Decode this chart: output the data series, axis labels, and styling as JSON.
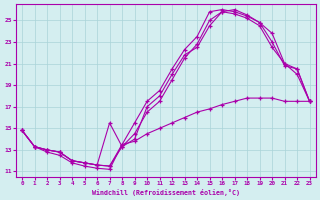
{
  "xlabel": "Windchill (Refroidissement éolien,°C)",
  "bg_color": "#d4eef0",
  "grid_color": "#aad4d8",
  "line_color": "#aa00aa",
  "xlim": [
    -0.5,
    23.5
  ],
  "ylim": [
    10.5,
    26.5
  ],
  "xticks": [
    0,
    1,
    2,
    3,
    4,
    5,
    6,
    7,
    8,
    9,
    10,
    11,
    12,
    13,
    14,
    15,
    16,
    17,
    18,
    19,
    20,
    21,
    22,
    23
  ],
  "yticks": [
    11,
    13,
    15,
    17,
    19,
    21,
    23,
    25
  ],
  "line1_x": [
    0,
    1,
    2,
    3,
    4,
    5,
    6,
    7,
    8,
    9,
    10,
    11,
    12,
    13,
    14,
    15,
    16,
    17,
    18,
    19,
    20,
    21,
    22,
    23
  ],
  "line1_y": [
    14.8,
    13.3,
    13.0,
    12.8,
    12.0,
    11.8,
    11.6,
    11.5,
    13.5,
    15.5,
    17.5,
    18.5,
    20.5,
    22.3,
    23.5,
    25.8,
    26.0,
    25.8,
    25.4,
    24.8,
    23.0,
    20.8,
    20.5,
    17.5
  ],
  "line2_x": [
    0,
    1,
    2,
    3,
    4,
    5,
    6,
    7,
    8,
    9,
    10,
    11,
    12,
    13,
    14,
    15,
    16,
    17,
    18,
    19,
    20,
    21,
    22,
    23
  ],
  "line2_y": [
    14.8,
    13.3,
    13.0,
    12.8,
    12.0,
    11.8,
    11.6,
    11.5,
    13.3,
    14.5,
    16.5,
    17.5,
    19.5,
    21.5,
    22.8,
    25.0,
    25.8,
    25.6,
    25.2,
    24.5,
    22.5,
    21.0,
    20.0,
    17.5
  ],
  "line3_x": [
    0,
    1,
    2,
    3,
    4,
    5,
    6,
    7,
    8,
    9,
    10,
    11,
    12,
    13,
    14,
    15,
    16,
    17,
    18,
    19,
    20,
    21,
    22,
    23
  ],
  "line3_y": [
    14.8,
    13.3,
    13.0,
    12.8,
    12.0,
    11.8,
    11.6,
    15.5,
    13.3,
    14.0,
    17.0,
    18.0,
    20.0,
    21.8,
    22.5,
    24.5,
    25.8,
    26.0,
    25.5,
    24.8,
    23.8,
    21.0,
    20.5,
    17.5
  ],
  "line4_x": [
    0,
    1,
    2,
    3,
    4,
    5,
    6,
    7,
    8,
    9,
    10,
    11,
    12,
    13,
    14,
    15,
    16,
    17,
    18,
    19,
    20,
    21,
    22,
    23
  ],
  "line4_y": [
    14.8,
    13.3,
    12.8,
    12.5,
    11.8,
    11.5,
    11.3,
    11.2,
    13.5,
    13.8,
    14.5,
    15.0,
    15.5,
    16.0,
    16.5,
    16.8,
    17.2,
    17.5,
    17.8,
    17.8,
    17.8,
    17.5,
    17.5,
    17.5
  ]
}
